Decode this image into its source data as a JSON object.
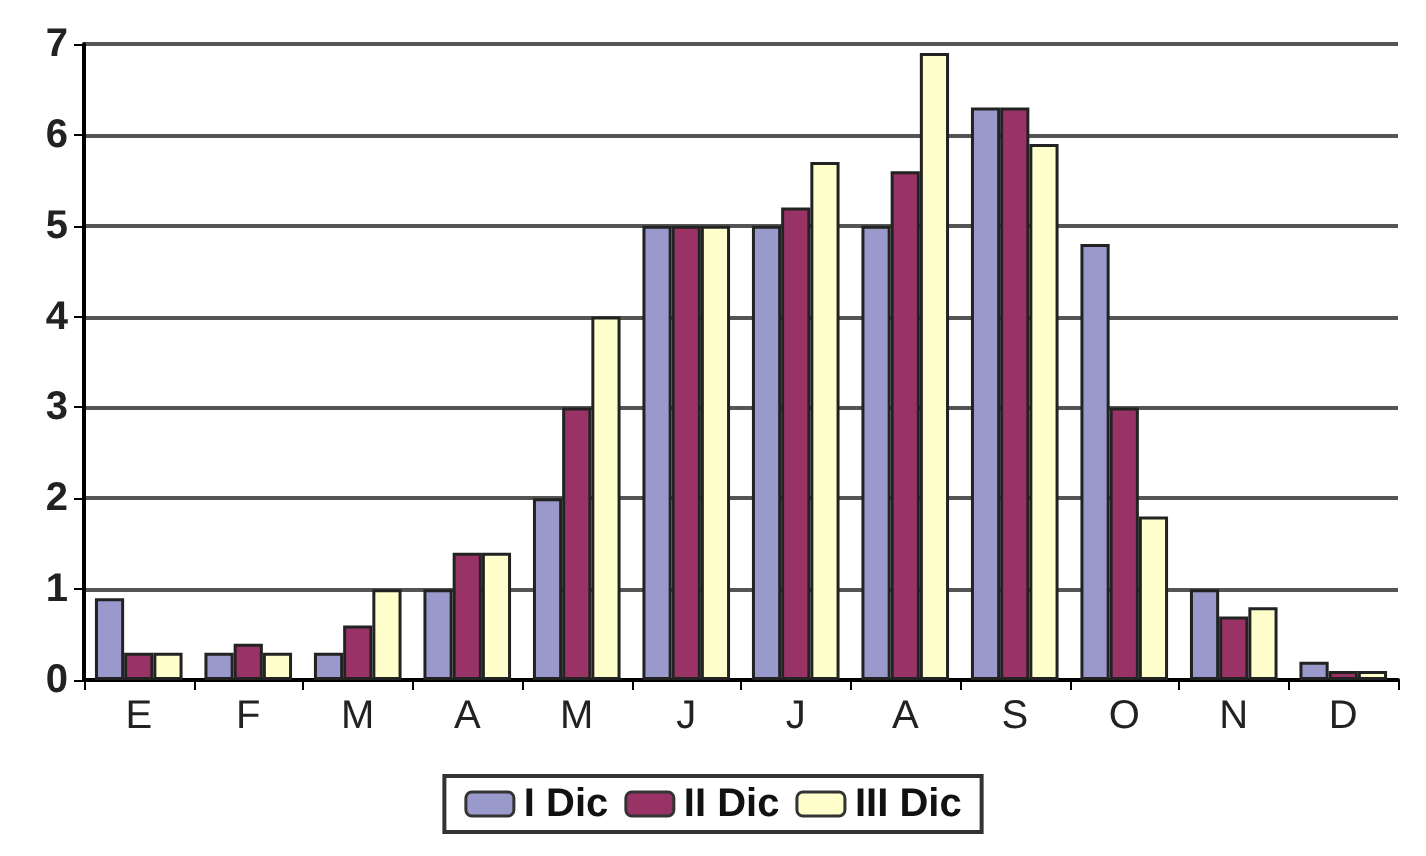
{
  "chart_data": {
    "type": "bar",
    "categories": [
      "E",
      "F",
      "M",
      "A",
      "M",
      "J",
      "J",
      "A",
      "S",
      "O",
      "N",
      "D"
    ],
    "series": [
      {
        "name": "I Dic",
        "color": "#9999cc",
        "values": [
          0.9,
          0.3,
          0.3,
          1.0,
          2.0,
          5.0,
          5.0,
          5.0,
          6.3,
          4.8,
          1.0,
          0.2
        ]
      },
      {
        "name": "II Dic",
        "color": "#993366",
        "values": [
          0.3,
          0.4,
          0.6,
          1.4,
          3.0,
          5.0,
          5.2,
          5.6,
          6.3,
          3.0,
          0.7,
          0.1
        ]
      },
      {
        "name": "III Dic",
        "color": "#ffffcc",
        "values": [
          0.3,
          0.3,
          1.0,
          1.4,
          4.0,
          5.0,
          5.7,
          6.9,
          5.9,
          1.8,
          0.8,
          0.1
        ]
      }
    ],
    "ylim": [
      0,
      7
    ],
    "yticks": [
      0,
      1,
      2,
      3,
      4,
      5,
      6,
      7
    ],
    "grid": "y",
    "legend": "bottom"
  }
}
